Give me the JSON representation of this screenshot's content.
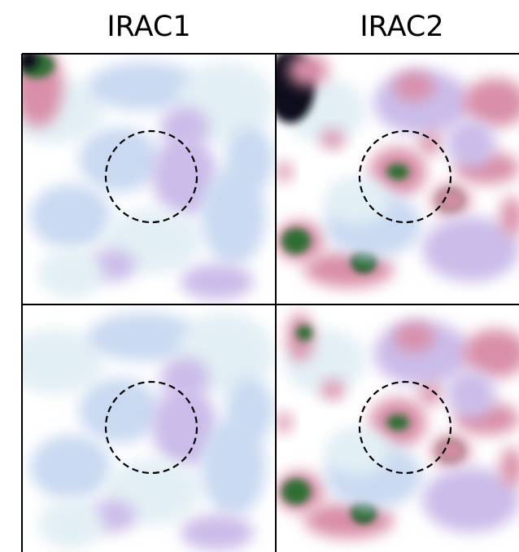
{
  "columns": [
    {
      "title": "IRAC1"
    },
    {
      "title": "IRAC2"
    }
  ]
}
